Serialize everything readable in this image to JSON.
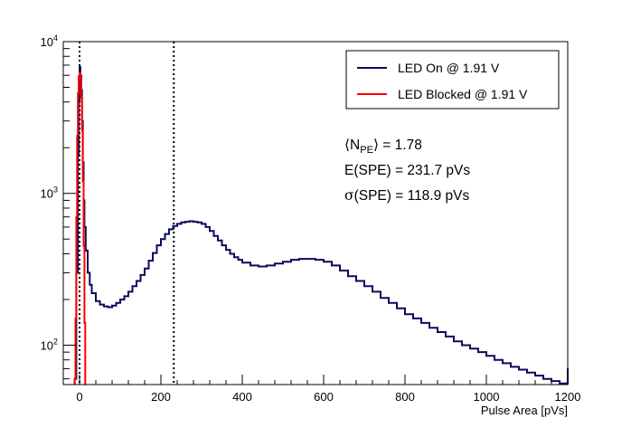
{
  "chart_data": {
    "type": "line",
    "title": "",
    "xlabel": "Pulse Area [pVs]",
    "ylabel": "",
    "xlim": [
      -40,
      1200
    ],
    "ylim": [
      55,
      10000
    ],
    "y_scale": "log",
    "x_ticks": [
      {
        "value": 0,
        "label": "0"
      },
      {
        "value": 200,
        "label": "200"
      },
      {
        "value": 400,
        "label": "400"
      },
      {
        "value": 600,
        "label": "600"
      },
      {
        "value": 800,
        "label": "800"
      },
      {
        "value": 1000,
        "label": "1000"
      },
      {
        "value": 1200,
        "label": "1200"
      }
    ],
    "y_ticks": [
      {
        "value": 100,
        "base": "10",
        "exp": "2"
      },
      {
        "value": 1000,
        "base": "10",
        "exp": "3"
      },
      {
        "value": 10000,
        "base": "10",
        "exp": "4"
      }
    ],
    "grid": false,
    "legend_position": "top-right",
    "series": [
      {
        "name": "LED On @ 1.91 V",
        "color": "#0a0a5e",
        "x": [
          -12,
          -8,
          -4,
          -2,
          0,
          2,
          4,
          6,
          8,
          10,
          12,
          15,
          20,
          25,
          30,
          40,
          50,
          60,
          70,
          80,
          90,
          100,
          110,
          120,
          130,
          140,
          150,
          160,
          170,
          180,
          190,
          200,
          210,
          220,
          230,
          240,
          250,
          260,
          270,
          280,
          290,
          300,
          310,
          320,
          330,
          340,
          350,
          360,
          370,
          380,
          390,
          400,
          420,
          440,
          460,
          480,
          500,
          520,
          540,
          560,
          580,
          600,
          620,
          640,
          660,
          680,
          700,
          720,
          740,
          760,
          780,
          800,
          820,
          840,
          860,
          880,
          900,
          920,
          940,
          960,
          980,
          1000,
          1020,
          1040,
          1060,
          1080,
          1100,
          1120,
          1140,
          1160,
          1180,
          1200
        ],
        "y": [
          60,
          300,
          1800,
          4000,
          6800,
          6000,
          4800,
          3000,
          1600,
          900,
          600,
          420,
          300,
          250,
          220,
          195,
          185,
          180,
          178,
          182,
          190,
          200,
          210,
          225,
          245,
          265,
          290,
          320,
          360,
          405,
          455,
          500,
          540,
          580,
          610,
          630,
          645,
          650,
          655,
          650,
          645,
          630,
          600,
          565,
          525,
          490,
          455,
          425,
          400,
          380,
          365,
          350,
          335,
          330,
          335,
          345,
          355,
          365,
          370,
          370,
          365,
          355,
          335,
          310,
          285,
          265,
          245,
          225,
          205,
          190,
          175,
          160,
          150,
          140,
          130,
          122,
          114,
          106,
          100,
          95,
          90,
          85,
          80,
          76,
          72,
          69,
          66,
          63,
          60,
          58,
          56,
          70
        ]
      },
      {
        "name": "LED Blocked @ 1.91 V",
        "color": "#ff0000",
        "x": [
          -12,
          -10,
          -8,
          -6,
          -4,
          -2,
          0,
          2,
          4,
          6,
          8,
          10,
          12,
          14
        ],
        "y": [
          60,
          150,
          700,
          2400,
          4600,
          5900,
          6200,
          5700,
          4300,
          2600,
          1200,
          450,
          140,
          55
        ]
      }
    ],
    "reference_lines": [
      {
        "axis": "x",
        "value": 0,
        "style": "dotted"
      },
      {
        "axis": "x",
        "value": 231.7,
        "style": "dotted"
      }
    ],
    "annotations": {
      "npe_label": "⟨N",
      "npe_subscript": "PE",
      "npe_value": "⟩ = 1.78",
      "espe": "E(SPE) = 231.7 pVs",
      "sigma_symbol": "σ",
      "sigma_text": "(SPE) = 118.9 pVs"
    }
  }
}
